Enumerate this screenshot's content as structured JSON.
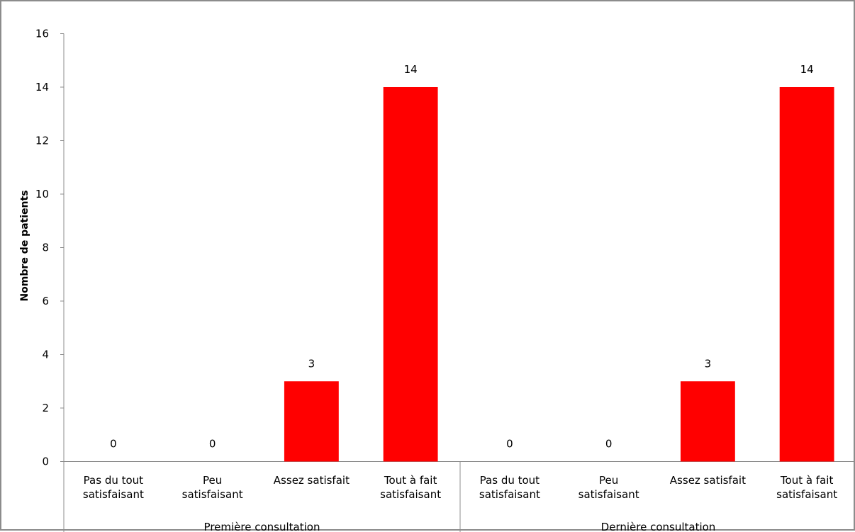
{
  "chart_data": {
    "type": "bar",
    "title": "",
    "xlabel": "",
    "ylabel": "Nombre de patients",
    "ylim": [
      0,
      16
    ],
    "yticks": [
      0,
      2,
      4,
      6,
      8,
      10,
      12,
      14,
      16
    ],
    "grid": false,
    "legend": "none",
    "bar_color": "#ff0000",
    "groups": [
      {
        "name": "Première consultation",
        "categories": [
          [
            "Pas du tout",
            "satisfaisant"
          ],
          [
            "Peu",
            "satisfaisant"
          ],
          [
            "Assez satisfait"
          ],
          [
            "Tout à fait",
            "satisfaisant"
          ]
        ],
        "values": [
          0,
          0,
          3,
          14
        ]
      },
      {
        "name": "Dernière consultation",
        "categories": [
          [
            "Pas du tout",
            "satisfaisant"
          ],
          [
            "Peu",
            "satisfaisant"
          ],
          [
            "Assez satisfait"
          ],
          [
            "Tout à fait",
            "satisfaisant"
          ]
        ],
        "values": [
          0,
          0,
          3,
          14
        ]
      }
    ]
  }
}
